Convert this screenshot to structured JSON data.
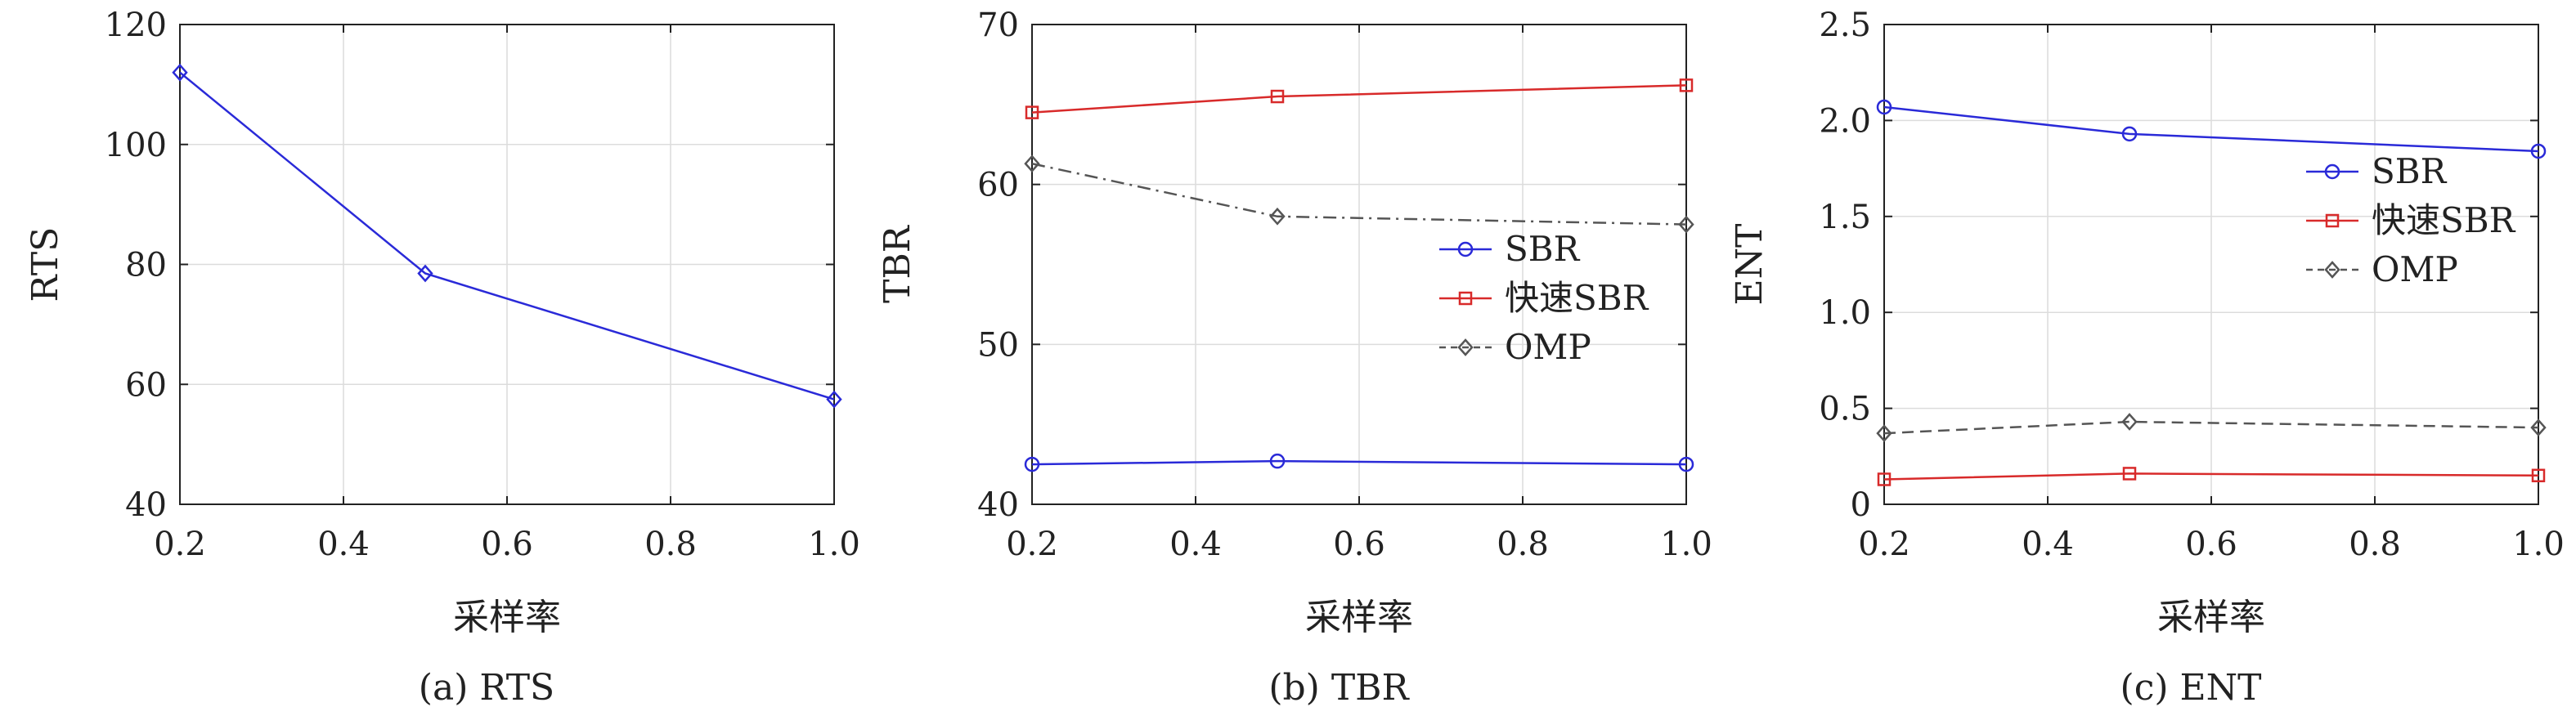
{
  "chart_data": [
    {
      "type": "line",
      "caption": "(a) RTS",
      "xlabel": "采样率",
      "ylabel": "RTS",
      "xlim": [
        0.2,
        1.0
      ],
      "ylim": [
        40,
        120
      ],
      "xticks": [
        0.2,
        0.4,
        0.6,
        0.8,
        1.0
      ],
      "xtick_labels": [
        "0.2",
        "0.4",
        "0.6",
        "0.8",
        "1.0"
      ],
      "yticks": [
        40,
        60,
        80,
        100,
        120
      ],
      "ytick_labels": [
        "40",
        "60",
        "80",
        "100",
        "120"
      ],
      "grid": true,
      "legend": null,
      "x": [
        0.2,
        0.5,
        1.0
      ],
      "series": [
        {
          "values": [
            112,
            78.5,
            57.5
          ],
          "color": "#2a2ad8",
          "marker": "diamond",
          "dash": "solid"
        }
      ]
    },
    {
      "type": "line",
      "caption": "(b) TBR",
      "xlabel": "采样率",
      "ylabel": "TBR",
      "xlim": [
        0.2,
        1.0
      ],
      "ylim": [
        40,
        70
      ],
      "xticks": [
        0.2,
        0.4,
        0.6,
        0.8,
        1.0
      ],
      "xtick_labels": [
        "0.2",
        "0.4",
        "0.6",
        "0.8",
        "1.0"
      ],
      "yticks": [
        40,
        50,
        60,
        70
      ],
      "ytick_labels": [
        "40",
        "50",
        "60",
        "70"
      ],
      "grid": true,
      "legend": "center-right",
      "x": [
        0.2,
        0.5,
        1.0
      ],
      "series": [
        {
          "name": "SBR",
          "values": [
            42.5,
            42.7,
            42.5
          ],
          "color": "#2a2ad8",
          "marker": "circle",
          "dash": "solid"
        },
        {
          "name": "快速SBR",
          "values": [
            64.5,
            65.5,
            66.2
          ],
          "color": "#d82a2a",
          "marker": "square",
          "dash": "solid"
        },
        {
          "name": "OMP",
          "values": [
            61.3,
            58.0,
            57.5
          ],
          "color": "#555555",
          "marker": "diamond",
          "dash": "dashdot"
        }
      ]
    },
    {
      "type": "line",
      "caption": "(c) ENT",
      "xlabel": "采样率",
      "ylabel": "ENT",
      "xlim": [
        0.2,
        1.0
      ],
      "ylim": [
        0,
        2.5
      ],
      "xticks": [
        0.2,
        0.4,
        0.6,
        0.8,
        1.0
      ],
      "xtick_labels": [
        "0.2",
        "0.4",
        "0.6",
        "0.8",
        "1.0"
      ],
      "yticks": [
        0,
        0.5,
        1.0,
        1.5,
        2.0,
        2.5
      ],
      "ytick_labels": [
        "0",
        "0.5",
        "1.0",
        "1.5",
        "2.0",
        "2.5"
      ],
      "grid": true,
      "legend": "top-right",
      "x": [
        0.2,
        0.5,
        1.0
      ],
      "series": [
        {
          "name": "SBR",
          "values": [
            2.07,
            1.93,
            1.84
          ],
          "color": "#2a2ad8",
          "marker": "circle",
          "dash": "solid"
        },
        {
          "name": "快速SBR",
          "values": [
            0.13,
            0.16,
            0.15
          ],
          "color": "#d82a2a",
          "marker": "square",
          "dash": "solid"
        },
        {
          "name": "OMP",
          "values": [
            0.37,
            0.43,
            0.4
          ],
          "color": "#555555",
          "marker": "diamond",
          "dash": "dashed"
        }
      ]
    }
  ]
}
